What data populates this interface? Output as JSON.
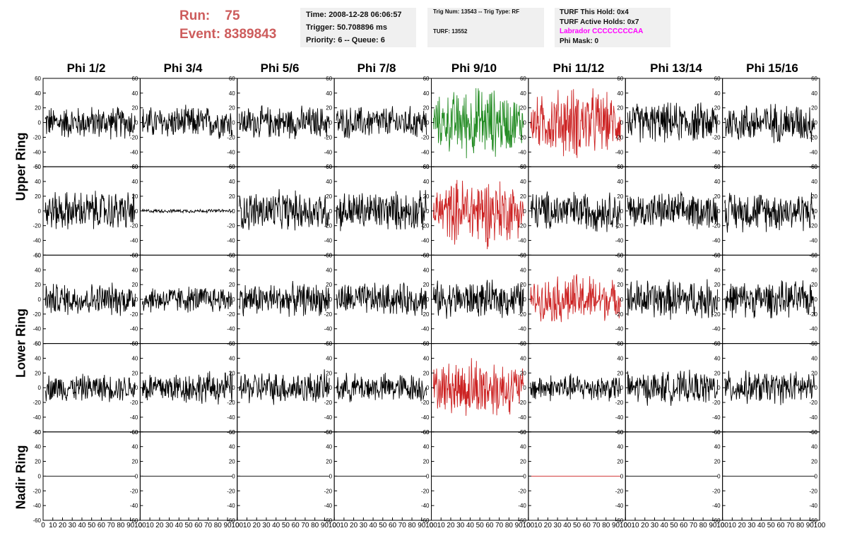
{
  "run": {
    "run_label": "Run:    75",
    "event_label": "Event: 8389843"
  },
  "info_box_1": {
    "time": "Time: 2008-12-28 06:06:57",
    "trigger": "Trigger: 50.708896 ms",
    "priority": "Priority: 6 -- Queue: 6"
  },
  "info_box_2": {
    "trig": "Trig Num: 13543 -- Trig Type: RF",
    "turf": "TURF: 13552"
  },
  "info_box_3": {
    "this_hold": "TURF This Hold: 0x4",
    "active_holds": "TURF Active Holds: 0x7",
    "labrador": "Labrador CCCCCCCCAA",
    "phi_mask": "Phi Mask: 0"
  },
  "columns": [
    "Phi 1/2",
    "Phi 3/4",
    "Phi 5/6",
    "Phi 7/8",
    "Phi 9/10",
    "Phi 11/12",
    "Phi 13/14",
    "Phi 15/16"
  ],
  "rings": [
    "Upper Ring",
    "Lower Ring",
    "Nadir Ring"
  ],
  "colors": {
    "normal": "#000000",
    "red": "#cc2222",
    "green": "#228b22",
    "run_text": "#cd5c5c",
    "labrador": "#ff00ff"
  },
  "chart_data": {
    "type": "line",
    "ylim": [
      -60,
      60
    ],
    "yticks": [
      "60",
      "40",
      "20",
      "0",
      "-20",
      "-40",
      "-60"
    ],
    "xlim": [
      0,
      100
    ],
    "xticks": [
      "0",
      "10",
      "20",
      "30",
      "40",
      "50",
      "60",
      "70",
      "80",
      "90",
      "100"
    ],
    "row_count": 5,
    "col_count": 8,
    "traces_note": "amplitude per panel row-major (5 rows x 8 cols); colour: n=normal, r=red, g=green",
    "amplitude": [
      [
        18,
        18,
        18,
        18,
        25,
        25,
        22,
        22
      ],
      [
        22,
        2,
        22,
        22,
        25,
        22,
        20,
        22
      ],
      [
        18,
        15,
        18,
        18,
        20,
        18,
        22,
        20
      ],
      [
        15,
        18,
        18,
        16,
        22,
        15,
        18,
        18
      ],
      [
        0,
        0,
        0,
        0,
        0,
        0,
        0,
        0
      ]
    ],
    "colour": [
      [
        "n",
        "n",
        "n",
        "n",
        "g",
        "r",
        "n",
        "n"
      ],
      [
        "n",
        "n",
        "n",
        "n",
        "r",
        "n",
        "n",
        "n"
      ],
      [
        "n",
        "n",
        "n",
        "n",
        "n",
        "r",
        "n",
        "n"
      ],
      [
        "n",
        "n",
        "n",
        "n",
        "r",
        "n",
        "n",
        "n"
      ],
      [
        "n",
        "n",
        "n",
        "n",
        "n",
        "r",
        "n",
        "n"
      ]
    ]
  }
}
